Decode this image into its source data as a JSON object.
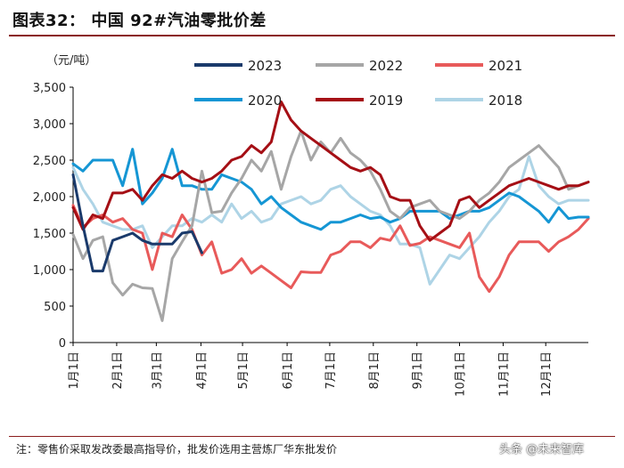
{
  "title": "图表32： 中国 92#汽油零批价差",
  "note": "注：零售价采取发改委最高指导价，批发价选用主营炼厂华东批发价",
  "watermark": "头条 @未来智库",
  "chart_data": {
    "type": "line",
    "ylabel": "（元/吨）",
    "ylim": [
      0,
      3500
    ],
    "yticks": [
      0,
      500,
      1000,
      1500,
      2000,
      2500,
      3000,
      3500
    ],
    "ytick_labels": [
      "0",
      "500",
      "1,000",
      "1,500",
      "2,000",
      "2,500",
      "3,000",
      "3,500"
    ],
    "x_range": [
      1,
      53
    ],
    "x_unit": "week of year",
    "xticks": [
      {
        "week": 1,
        "label": "1月1日"
      },
      {
        "week": 5.4,
        "label": "2月1日"
      },
      {
        "week": 9.4,
        "label": "3月1日"
      },
      {
        "week": 13.9,
        "label": "4月1日"
      },
      {
        "week": 18.1,
        "label": "5月1日"
      },
      {
        "week": 22.6,
        "label": "6月1日"
      },
      {
        "week": 26.9,
        "label": "7月1日"
      },
      {
        "week": 31.3,
        "label": "8月1日"
      },
      {
        "week": 35.7,
        "label": "9月1日"
      },
      {
        "week": 40.0,
        "label": "10月1日"
      },
      {
        "week": 44.4,
        "label": "11月1日"
      },
      {
        "week": 48.7,
        "label": "12月1日"
      }
    ],
    "series": [
      {
        "name": "2023",
        "color": "#1a3a6b",
        "width": 3,
        "x": [
          1,
          2,
          3,
          4,
          5,
          6,
          7,
          8,
          9,
          10,
          11,
          12,
          13,
          14
        ],
        "values": [
          2300,
          1600,
          980,
          980,
          1400,
          1450,
          1500,
          1400,
          1350,
          1350,
          1350,
          1500,
          1520,
          1230
        ]
      },
      {
        "name": "2022",
        "color": "#a6a6a6",
        "width": 3,
        "x": [
          1,
          2,
          3,
          4,
          5,
          6,
          7,
          8,
          9,
          10,
          11,
          12,
          13,
          14,
          15,
          16,
          17,
          18,
          19,
          20,
          21,
          22,
          23,
          24,
          25,
          26,
          27,
          28,
          29,
          30,
          31,
          32,
          33,
          34,
          35,
          36,
          37,
          38,
          39,
          40,
          41,
          42,
          43,
          44,
          45,
          46,
          47,
          48,
          49,
          50,
          51,
          52,
          53
        ],
        "values": [
          1480,
          1150,
          1400,
          1450,
          820,
          650,
          800,
          750,
          740,
          300,
          1150,
          1380,
          1600,
          2350,
          1780,
          1800,
          2050,
          2250,
          2500,
          2350,
          2620,
          2100,
          2550,
          2900,
          2500,
          2750,
          2600,
          2800,
          2600,
          2500,
          2350,
          2100,
          1800,
          1700,
          1850,
          1900,
          1950,
          1800,
          1750,
          1700,
          1800,
          1950,
          2050,
          2200,
          2400,
          2500,
          2600,
          2700,
          2550,
          2400,
          2100,
          2150,
          2200
        ]
      },
      {
        "name": "2021",
        "color": "#e85a5a",
        "width": 3,
        "x": [
          1,
          2,
          3,
          4,
          5,
          6,
          7,
          8,
          9,
          10,
          11,
          12,
          13,
          14,
          15,
          16,
          17,
          18,
          19,
          20,
          21,
          22,
          23,
          24,
          25,
          26,
          27,
          28,
          29,
          30,
          31,
          32,
          33,
          34,
          35,
          36,
          37,
          38,
          39,
          40,
          41,
          42,
          43,
          44,
          45,
          46,
          47,
          48,
          49,
          50,
          51,
          52,
          53
        ],
        "values": [
          1880,
          1580,
          1700,
          1750,
          1650,
          1700,
          1550,
          1500,
          1000,
          1500,
          1450,
          1750,
          1550,
          1200,
          1380,
          950,
          1000,
          1150,
          950,
          1050,
          950,
          850,
          750,
          970,
          960,
          960,
          1200,
          1250,
          1380,
          1380,
          1300,
          1430,
          1400,
          1600,
          1330,
          1360,
          1450,
          1400,
          1350,
          1300,
          1500,
          900,
          700,
          900,
          1200,
          1380,
          1380,
          1380,
          1250,
          1380,
          1450,
          1550,
          1700
        ]
      },
      {
        "name": "2020",
        "color": "#1596d4",
        "width": 3,
        "x": [
          1,
          2,
          3,
          4,
          5,
          6,
          7,
          8,
          9,
          10,
          11,
          12,
          13,
          14,
          15,
          16,
          17,
          18,
          19,
          20,
          21,
          22,
          23,
          24,
          25,
          26,
          27,
          28,
          29,
          30,
          31,
          32,
          33,
          34,
          35,
          36,
          37,
          38,
          39,
          40,
          41,
          42,
          43,
          44,
          45,
          46,
          47,
          48,
          49,
          50,
          51,
          52,
          53
        ],
        "values": [
          2450,
          2350,
          2500,
          2500,
          2500,
          2150,
          2650,
          1900,
          2050,
          2250,
          2650,
          2150,
          2150,
          2100,
          2100,
          2300,
          2250,
          2200,
          2100,
          1900,
          2000,
          1850,
          1750,
          1650,
          1600,
          1550,
          1650,
          1650,
          1700,
          1750,
          1700,
          1720,
          1650,
          1700,
          1800,
          1800,
          1800,
          1800,
          1700,
          1750,
          1800,
          1800,
          1850,
          1950,
          2050,
          2000,
          1900,
          1800,
          1650,
          1850,
          1700,
          1720,
          1720
        ]
      },
      {
        "name": "2019",
        "color": "#a50f15",
        "width": 3,
        "x": [
          1,
          2,
          3,
          4,
          5,
          6,
          7,
          8,
          9,
          10,
          11,
          12,
          13,
          14,
          15,
          16,
          17,
          18,
          19,
          20,
          21,
          22,
          23,
          24,
          25,
          26,
          27,
          28,
          29,
          30,
          31,
          32,
          33,
          34,
          35,
          36,
          37,
          38,
          39,
          40,
          41,
          42,
          43,
          44,
          45,
          46,
          47,
          48,
          49,
          50,
          51,
          52,
          53
        ],
        "values": [
          1850,
          1550,
          1750,
          1700,
          2050,
          2050,
          2100,
          1950,
          2150,
          2300,
          2250,
          2350,
          2250,
          2200,
          2250,
          2350,
          2500,
          2550,
          2700,
          2600,
          2750,
          3300,
          3050,
          2900,
          2800,
          2700,
          2600,
          2500,
          2400,
          2350,
          2400,
          2300,
          2000,
          1950,
          1950,
          1600,
          1400,
          1500,
          1600,
          1950,
          2000,
          1850,
          1950,
          2050,
          2150,
          2200,
          2250,
          2200,
          2150,
          2100,
          2150,
          2150,
          2200
        ]
      },
      {
        "name": "2018",
        "color": "#aed4e6",
        "width": 3,
        "x": [
          1,
          2,
          3,
          4,
          5,
          6,
          7,
          8,
          9,
          10,
          11,
          12,
          13,
          14,
          15,
          16,
          17,
          18,
          19,
          20,
          21,
          22,
          23,
          24,
          25,
          26,
          27,
          28,
          29,
          30,
          31,
          32,
          33,
          34,
          35,
          36,
          37,
          38,
          39,
          40,
          41,
          42,
          43,
          44,
          45,
          46,
          47,
          48,
          49,
          50,
          51,
          52,
          53
        ],
        "values": [
          2400,
          2100,
          1900,
          1650,
          1600,
          1550,
          1550,
          1600,
          1300,
          1450,
          1600,
          1600,
          1700,
          1650,
          1750,
          1650,
          1900,
          1700,
          1800,
          1650,
          1700,
          1900,
          1950,
          2000,
          1900,
          1950,
          2100,
          2150,
          2000,
          1900,
          1800,
          1750,
          1600,
          1350,
          1350,
          1300,
          800,
          1000,
          1200,
          1150,
          1300,
          1450,
          1650,
          1800,
          2000,
          2100,
          2550,
          2150,
          2000,
          1900,
          1950,
          1950,
          1950
        ]
      }
    ],
    "legend": {
      "placement": "top-center",
      "columns": 3
    }
  }
}
